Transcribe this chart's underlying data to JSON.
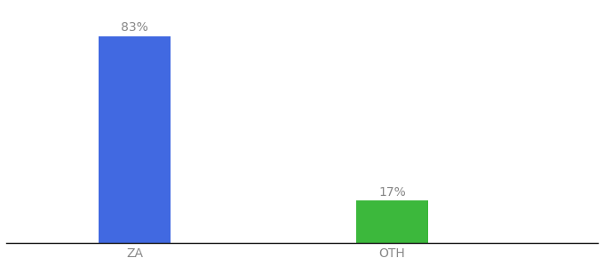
{
  "categories": [
    "ZA",
    "OTH"
  ],
  "values": [
    83,
    17
  ],
  "bar_colors": [
    "#4169e1",
    "#3cb83c"
  ],
  "labels": [
    "83%",
    "17%"
  ],
  "background_color": "#ffffff",
  "ylim": [
    0,
    95
  ],
  "bar_width": 0.28,
  "x_positions": [
    1,
    2
  ],
  "xlim": [
    0.5,
    2.8
  ],
  "figsize": [
    6.8,
    3.0
  ],
  "dpi": 100,
  "label_color": "#888888",
  "tick_color": "#888888",
  "label_fontsize": 10,
  "tick_fontsize": 10
}
